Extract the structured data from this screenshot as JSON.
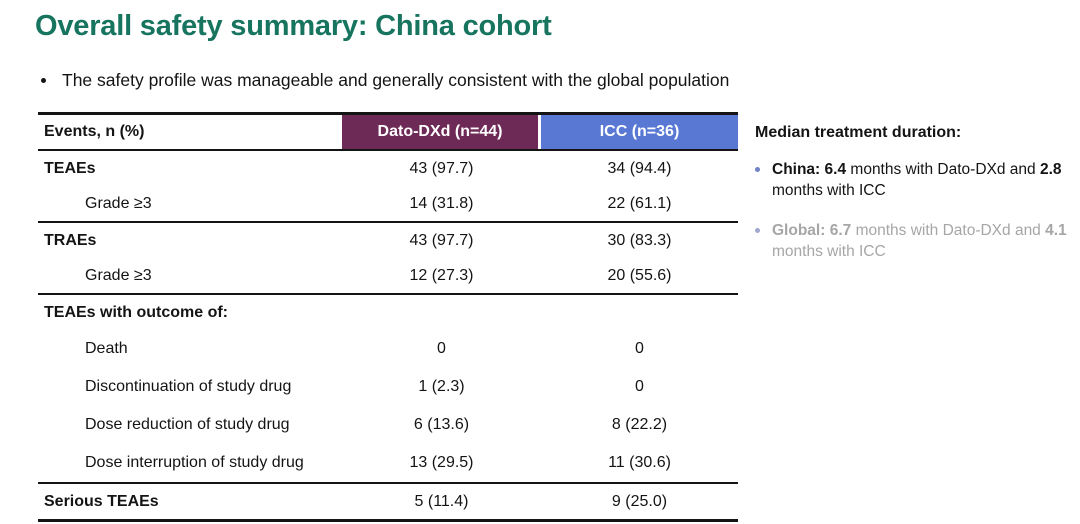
{
  "slide": {
    "title": "Overall safety summary: China cohort",
    "bullet": "The safety profile was manageable and generally consistent with the global population"
  },
  "table": {
    "header": {
      "events": "Events, n (%)",
      "col1": "Dato-DXd (n=44)",
      "col2": "ICC (n=36)"
    },
    "rows": [
      {
        "label": "TEAEs",
        "dato": "43 (97.7)",
        "icc": "34 (94.4)"
      },
      {
        "label": "Grade ≥3",
        "dato": "14 (31.8)",
        "icc": "22 (61.1)"
      },
      {
        "label": "TRAEs",
        "dato": "43 (97.7)",
        "icc": "30 (83.3)"
      },
      {
        "label": "Grade ≥3",
        "dato": "12 (27.3)",
        "icc": "20 (55.6)"
      },
      {
        "label": "TEAEs with outcome of:",
        "dato": "",
        "icc": ""
      },
      {
        "label": "Death",
        "dato": "0",
        "icc": "0"
      },
      {
        "label": "Discontinuation of study drug",
        "dato": "1 (2.3)",
        "icc": "0"
      },
      {
        "label": "Dose reduction of study drug",
        "dato": "6 (13.6)",
        "icc": "8 (22.2)"
      },
      {
        "label": "Dose interruption of study drug",
        "dato": "13 (29.5)",
        "icc": "11 (30.6)"
      },
      {
        "label": "Serious TEAEs",
        "dato": "5 (11.4)",
        "icc": "9 (25.0)"
      }
    ]
  },
  "sidebar": {
    "heading": "Median treatment duration:",
    "china": {
      "label": "China:",
      "value1": "6.4",
      "seg1": "months with Dato-DXd and",
      "value2": "2.8",
      "seg2": "months with ICC"
    },
    "global": {
      "label": "Global:",
      "value1": "6.7",
      "seg1": "months with Dato-DXd and",
      "value2": "4.1",
      "seg2": "months with ICC"
    }
  },
  "colors": {
    "title_teal": "#17745f",
    "dato_header": "#6e2a57",
    "icc_header": "#5878d4",
    "global_gray": "#a6a6a6",
    "bullet_blue": "#6f83c5"
  }
}
